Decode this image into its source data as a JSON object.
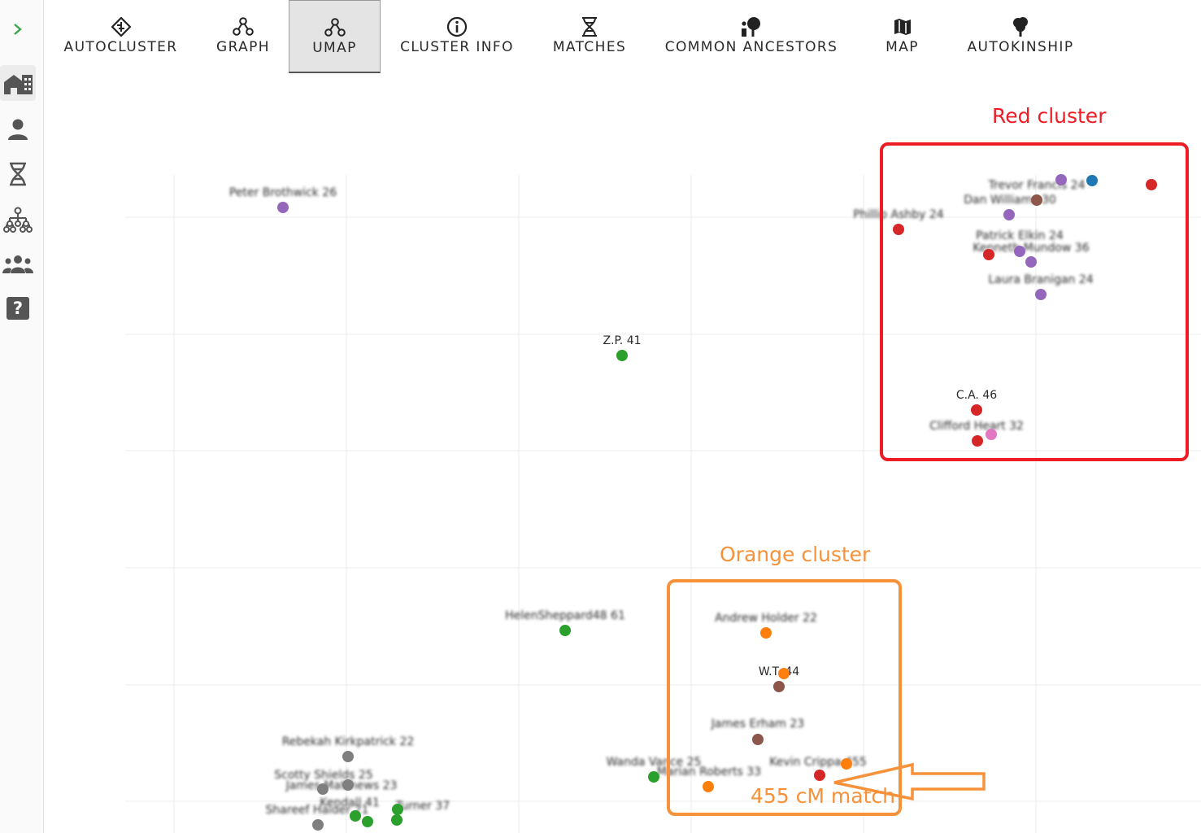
{
  "sidebar": {
    "expand_icon": "chevron-right-icon",
    "items": [
      {
        "name": "dashboard-icon"
      },
      {
        "name": "person-icon"
      },
      {
        "name": "dna-icon"
      },
      {
        "name": "tree-icon"
      },
      {
        "name": "group-icon"
      },
      {
        "name": "help-icon",
        "glyph": "?"
      }
    ]
  },
  "tabs": [
    {
      "label": "AUTOCLUSTER",
      "icon": "autocluster-icon"
    },
    {
      "label": "GRAPH",
      "icon": "graph-icon"
    },
    {
      "label": "UMAP",
      "icon": "umap-icon",
      "active": true
    },
    {
      "label": "CLUSTER INFO",
      "icon": "info-icon"
    },
    {
      "label": "MATCHES",
      "icon": "dna-icon"
    },
    {
      "label": "COMMON ANCESTORS",
      "icon": "ancestors-icon"
    },
    {
      "label": "MAP",
      "icon": "map-icon"
    },
    {
      "label": "AUTOKINSHIP",
      "icon": "tree-icon"
    }
  ],
  "colors": {
    "red": "#d62728",
    "orange": "#ff7f0e",
    "green": "#2ca02c",
    "purple": "#9467bd",
    "brown": "#8c564b",
    "blue": "#1f77b4",
    "pink": "#e377c2",
    "gray": "#7f7f7f",
    "annotation_red": "#ee1c25",
    "annotation_orange": "#f7923a"
  },
  "points": [
    {
      "label": "Peter Brothwick 26",
      "color": "purple",
      "blurred": true
    },
    {
      "label": "Trevor Francis 24",
      "color": "purple",
      "blurred": true
    },
    {
      "label": "",
      "color": "blue"
    },
    {
      "label": "",
      "color": "red"
    },
    {
      "label": "Dan Williams 30",
      "color": "brown",
      "blurred": true
    },
    {
      "label": "Phillip Ashby 24",
      "color": "red",
      "blurred": true
    },
    {
      "label": "",
      "color": "purple"
    },
    {
      "label": "Patrick Elkin 24",
      "color": "purple",
      "blurred": true
    },
    {
      "label": "Kenneth Mundow 36",
      "color": "red",
      "blurred": true
    },
    {
      "label": "",
      "color": "purple"
    },
    {
      "label": "Laura Branigan 24",
      "color": "purple",
      "blurred": true
    },
    {
      "label": "Z.P. 41",
      "color": "green"
    },
    {
      "label": "C.A. 46",
      "color": "red"
    },
    {
      "label": "Clifford Heart 32",
      "color": "red",
      "blurred": true
    },
    {
      "label": "",
      "color": "pink"
    },
    {
      "label": "HelenSheppard48 61",
      "color": "green",
      "blurred": true
    },
    {
      "label": "Andrew Holder 22",
      "color": "orange",
      "blurred": true
    },
    {
      "label": "W.T. 44",
      "color": "orange"
    },
    {
      "label": "",
      "color": "brown"
    },
    {
      "label": "James Erham 23",
      "color": "brown",
      "blurred": true
    },
    {
      "label": "Kevin Crippa 455",
      "color": "red",
      "blurred": true
    },
    {
      "label": "",
      "color": "orange"
    },
    {
      "label": "Marian Roberts 33",
      "color": "orange",
      "blurred": true
    },
    {
      "label": "Wanda Vance 25",
      "color": "green",
      "blurred": true
    },
    {
      "label": "Rebekah Kirkpatrick 22",
      "color": "gray",
      "blurred": true
    },
    {
      "label": "Scotty Shields 25",
      "color": "gray",
      "blurred": true
    },
    {
      "label": "James Matthews 23",
      "color": "gray",
      "blurred": true
    },
    {
      "label": "Kendall 41",
      "color": "green",
      "blurred": true
    },
    {
      "label": "Shareef Haider 21",
      "color": "gray",
      "blurred": true
    },
    {
      "label": "Turner 37",
      "color": "green",
      "blurred": true
    },
    {
      "label": "",
      "color": "green"
    },
    {
      "label": "",
      "color": "green"
    }
  ],
  "annotations": {
    "red_cluster": "Red cluster",
    "orange_cluster": "Orange cluster",
    "match_label": "455 cM match"
  }
}
